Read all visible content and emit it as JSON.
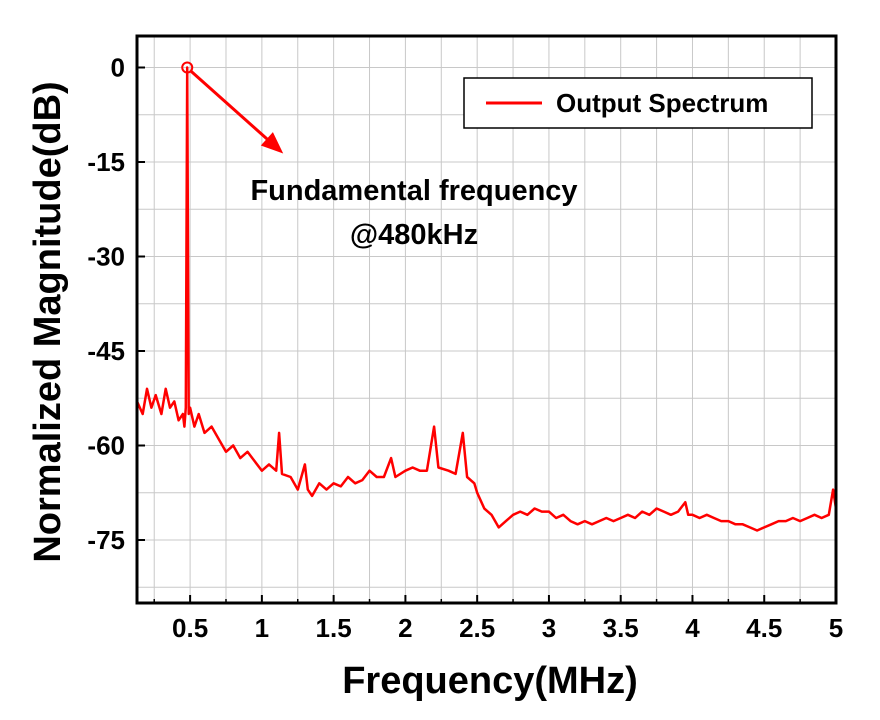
{
  "chart_data": {
    "type": "line",
    "xlabel": "Frequency(MHz)",
    "ylabel": "Normalized Magnitude(dB)",
    "xlim": [
      0.13,
      5.0
    ],
    "ylim": [
      -85,
      5
    ],
    "xticks": [
      0.5,
      1,
      1.5,
      2,
      2.5,
      3,
      3.5,
      4,
      4.5,
      5
    ],
    "xtick_labels": [
      "0.5",
      "1",
      "1.5",
      "2",
      "2.5",
      "3",
      "3.5",
      "4",
      "4.5",
      "5"
    ],
    "yticks": [
      0,
      -15,
      -30,
      -45,
      -60,
      -75
    ],
    "ytick_labels": [
      "0",
      "-15",
      "-30",
      "-45",
      "-60",
      "-75"
    ],
    "grid": true,
    "legend": {
      "position": "top-right",
      "entries": [
        "Output Spectrum"
      ]
    },
    "series": [
      {
        "name": "Output Spectrum",
        "color": "#ff0000",
        "points": [
          [
            0.13,
            -53
          ],
          [
            0.17,
            -55
          ],
          [
            0.2,
            -51
          ],
          [
            0.23,
            -54
          ],
          [
            0.26,
            -52
          ],
          [
            0.3,
            -55
          ],
          [
            0.33,
            -51
          ],
          [
            0.36,
            -54
          ],
          [
            0.39,
            -53
          ],
          [
            0.42,
            -56
          ],
          [
            0.45,
            -55
          ],
          [
            0.46,
            -57
          ],
          [
            0.47,
            -54
          ],
          [
            0.48,
            0
          ],
          [
            0.49,
            -55
          ],
          [
            0.5,
            -54
          ],
          [
            0.53,
            -57
          ],
          [
            0.56,
            -55
          ],
          [
            0.6,
            -58
          ],
          [
            0.65,
            -57
          ],
          [
            0.7,
            -59
          ],
          [
            0.75,
            -61
          ],
          [
            0.8,
            -60
          ],
          [
            0.85,
            -62
          ],
          [
            0.9,
            -61
          ],
          [
            0.95,
            -62.5
          ],
          [
            1.0,
            -64
          ],
          [
            1.05,
            -63
          ],
          [
            1.1,
            -64
          ],
          [
            1.12,
            -58
          ],
          [
            1.14,
            -64.5
          ],
          [
            1.2,
            -65
          ],
          [
            1.25,
            -67
          ],
          [
            1.3,
            -63
          ],
          [
            1.32,
            -67
          ],
          [
            1.35,
            -68
          ],
          [
            1.4,
            -66
          ],
          [
            1.45,
            -67
          ],
          [
            1.5,
            -66
          ],
          [
            1.55,
            -66.5
          ],
          [
            1.6,
            -65
          ],
          [
            1.65,
            -66
          ],
          [
            1.7,
            -65.5
          ],
          [
            1.75,
            -64
          ],
          [
            1.8,
            -65
          ],
          [
            1.85,
            -65
          ],
          [
            1.9,
            -62
          ],
          [
            1.93,
            -65
          ],
          [
            2.0,
            -64
          ],
          [
            2.05,
            -63.5
          ],
          [
            2.1,
            -64
          ],
          [
            2.15,
            -64
          ],
          [
            2.2,
            -57
          ],
          [
            2.23,
            -63.5
          ],
          [
            2.3,
            -64
          ],
          [
            2.35,
            -64.5
          ],
          [
            2.4,
            -58
          ],
          [
            2.43,
            -65
          ],
          [
            2.48,
            -66
          ],
          [
            2.5,
            -67.5
          ],
          [
            2.55,
            -70
          ],
          [
            2.6,
            -71
          ],
          [
            2.65,
            -73
          ],
          [
            2.7,
            -72
          ],
          [
            2.75,
            -71
          ],
          [
            2.8,
            -70.5
          ],
          [
            2.85,
            -71
          ],
          [
            2.9,
            -70
          ],
          [
            2.95,
            -70.5
          ],
          [
            3.0,
            -70.5
          ],
          [
            3.05,
            -71.5
          ],
          [
            3.1,
            -71
          ],
          [
            3.15,
            -72
          ],
          [
            3.2,
            -72.5
          ],
          [
            3.25,
            -72
          ],
          [
            3.3,
            -72.5
          ],
          [
            3.35,
            -72
          ],
          [
            3.4,
            -71.5
          ],
          [
            3.45,
            -72
          ],
          [
            3.5,
            -71.5
          ],
          [
            3.55,
            -71
          ],
          [
            3.6,
            -71.5
          ],
          [
            3.65,
            -70.5
          ],
          [
            3.7,
            -71
          ],
          [
            3.75,
            -70
          ],
          [
            3.8,
            -70.5
          ],
          [
            3.85,
            -71
          ],
          [
            3.9,
            -70.5
          ],
          [
            3.95,
            -69
          ],
          [
            3.97,
            -71
          ],
          [
            4.0,
            -71
          ],
          [
            4.05,
            -71.5
          ],
          [
            4.1,
            -71
          ],
          [
            4.15,
            -71.5
          ],
          [
            4.2,
            -72
          ],
          [
            4.25,
            -72
          ],
          [
            4.3,
            -72.5
          ],
          [
            4.35,
            -72.5
          ],
          [
            4.4,
            -73
          ],
          [
            4.45,
            -73.5
          ],
          [
            4.5,
            -73
          ],
          [
            4.55,
            -72.5
          ],
          [
            4.6,
            -72
          ],
          [
            4.65,
            -72
          ],
          [
            4.7,
            -71.5
          ],
          [
            4.75,
            -72
          ],
          [
            4.8,
            -71.5
          ],
          [
            4.85,
            -71
          ],
          [
            4.9,
            -71.5
          ],
          [
            4.95,
            -71
          ],
          [
            4.98,
            -67
          ],
          [
            5.0,
            -70
          ]
        ]
      }
    ],
    "annotations": [
      {
        "text_lines": [
          "Fundamental frequency",
          "@480kHz"
        ],
        "marker": [
          0.48,
          0
        ]
      }
    ]
  }
}
